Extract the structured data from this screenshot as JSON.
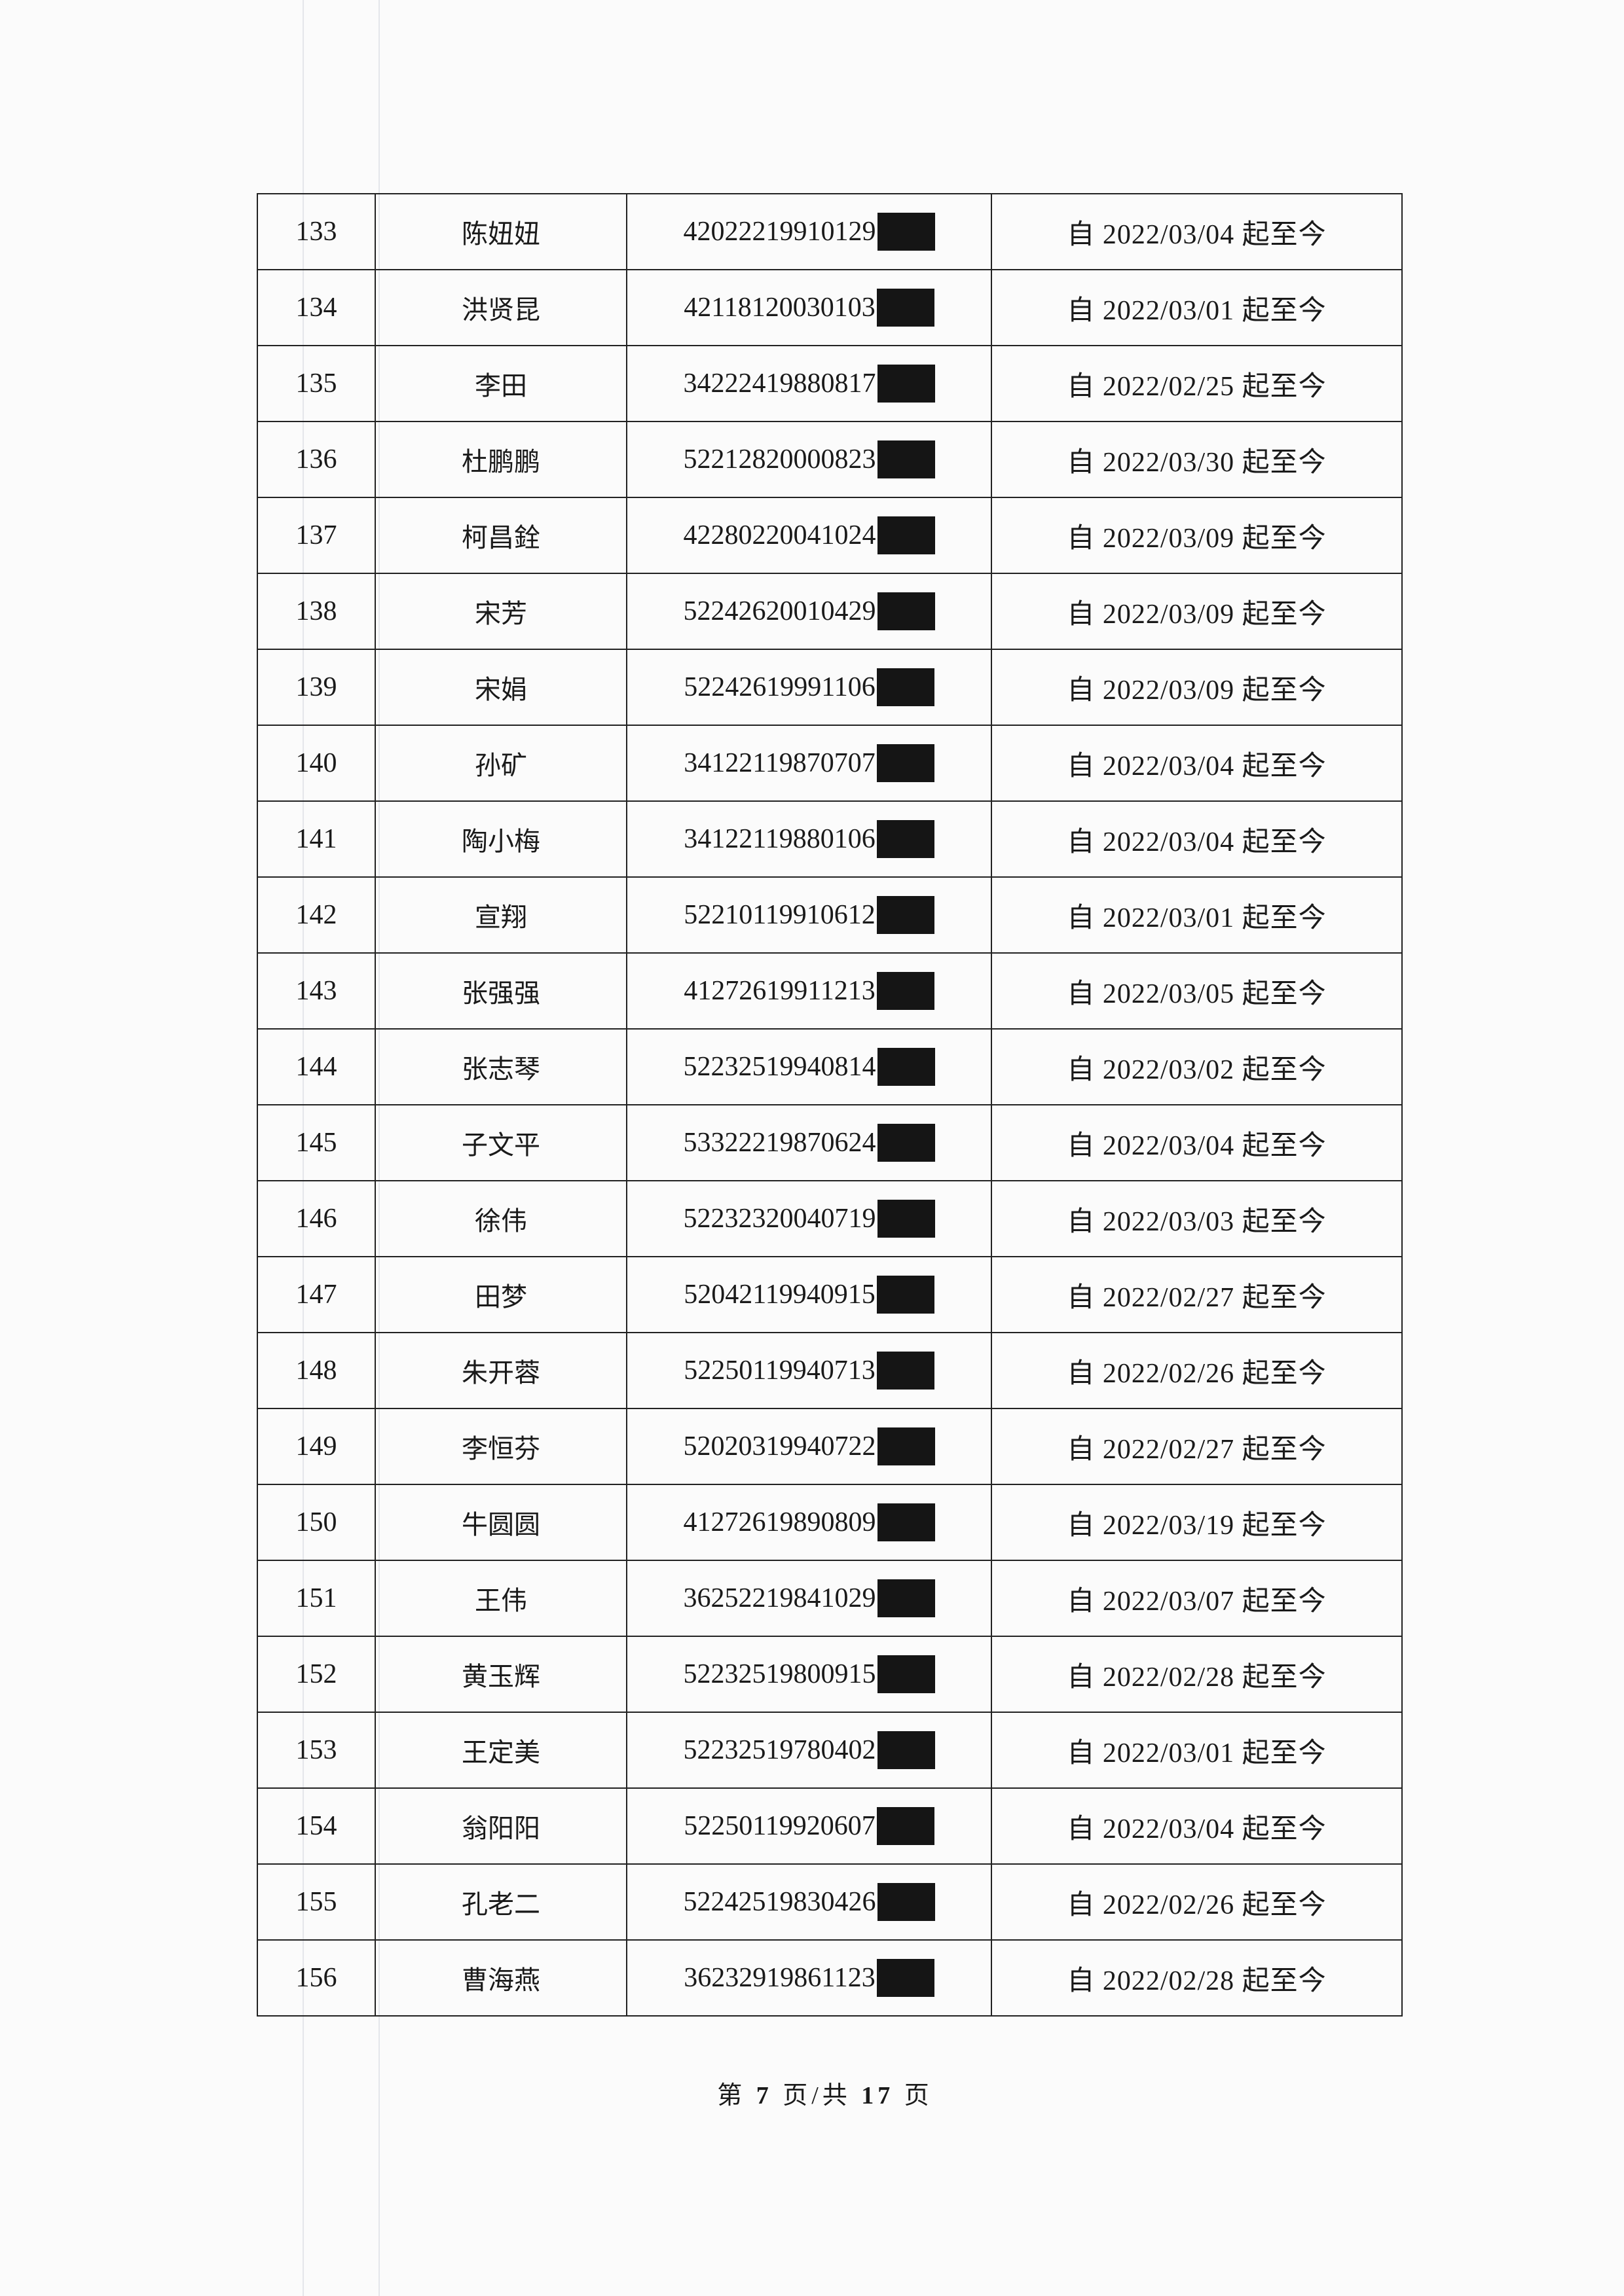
{
  "rows": [
    {
      "no": "133",
      "name": "陈妞妞",
      "id": "42022219910129",
      "date": "自 2022/03/04 起至今"
    },
    {
      "no": "134",
      "name": "洪贤昆",
      "id": "42118120030103",
      "date": "自 2022/03/01 起至今"
    },
    {
      "no": "135",
      "name": "李田",
      "id": "34222419880817",
      "date": "自 2022/02/25 起至今"
    },
    {
      "no": "136",
      "name": "杜鹏鹏",
      "id": "52212820000823",
      "date": "自 2022/03/30 起至今"
    },
    {
      "no": "137",
      "name": "柯昌銓",
      "id": "42280220041024",
      "date": "自 2022/03/09 起至今"
    },
    {
      "no": "138",
      "name": "宋芳",
      "id": "52242620010429",
      "date": "自 2022/03/09 起至今"
    },
    {
      "no": "139",
      "name": "宋娟",
      "id": "52242619991106",
      "date": "自 2022/03/09 起至今"
    },
    {
      "no": "140",
      "name": "孙矿",
      "id": "34122119870707",
      "date": "自 2022/03/04 起至今"
    },
    {
      "no": "141",
      "name": "陶小梅",
      "id": "34122119880106",
      "date": "自 2022/03/04 起至今"
    },
    {
      "no": "142",
      "name": "宣翔",
      "id": "52210119910612",
      "date": "自 2022/03/01 起至今"
    },
    {
      "no": "143",
      "name": "张强强",
      "id": "41272619911213",
      "date": "自 2022/03/05 起至今"
    },
    {
      "no": "144",
      "name": "张志琴",
      "id": "52232519940814",
      "date": "自 2022/03/02 起至今"
    },
    {
      "no": "145",
      "name": "子文平",
      "id": "53322219870624",
      "date": "自 2022/03/04 起至今"
    },
    {
      "no": "146",
      "name": "徐伟",
      "id": "52232320040719",
      "date": "自 2022/03/03 起至今"
    },
    {
      "no": "147",
      "name": "田梦",
      "id": "52042119940915",
      "date": "自 2022/02/27 起至今"
    },
    {
      "no": "148",
      "name": "朱开蓉",
      "id": "52250119940713",
      "date": "自 2022/02/26 起至今"
    },
    {
      "no": "149",
      "name": "李恒芬",
      "id": "52020319940722",
      "date": "自 2022/02/27 起至今"
    },
    {
      "no": "150",
      "name": "牛圆圆",
      "id": "41272619890809",
      "date": "自 2022/03/19 起至今"
    },
    {
      "no": "151",
      "name": "王伟",
      "id": "36252219841029",
      "date": "自 2022/03/07 起至今"
    },
    {
      "no": "152",
      "name": "黄玉辉",
      "id": "52232519800915",
      "date": "自 2022/02/28 起至今"
    },
    {
      "no": "153",
      "name": "王定美",
      "id": "52232519780402",
      "date": "自 2022/03/01 起至今"
    },
    {
      "no": "154",
      "name": "翁阳阳",
      "id": "52250119920607",
      "date": "自 2022/03/04 起至今"
    },
    {
      "no": "155",
      "name": "孔老二",
      "id": "52242519830426",
      "date": "自 2022/02/26 起至今"
    },
    {
      "no": "156",
      "name": "曹海燕",
      "id": "36232919861123",
      "date": "自 2022/02/28 起至今"
    }
  ],
  "footer": {
    "prefix": "第",
    "page": "7",
    "middle": "页/共",
    "total": "17",
    "suffix": "页"
  },
  "colors": {
    "redaction": "#151515",
    "ink": "#1a1a1a"
  }
}
